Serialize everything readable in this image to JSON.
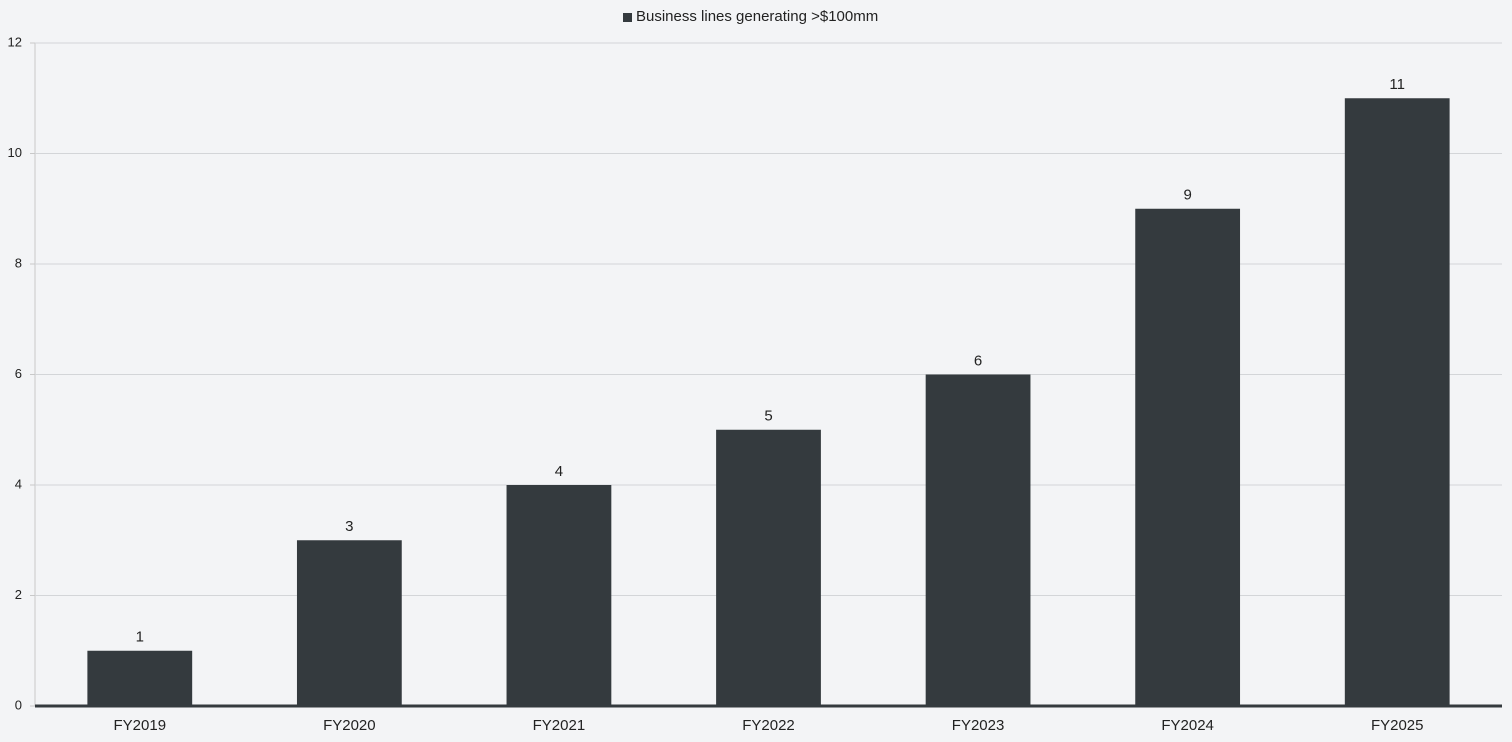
{
  "chart_data": {
    "type": "bar",
    "categories": [
      "FY2019",
      "FY2020",
      "FY2021",
      "FY2022",
      "FY2023",
      "FY2024",
      "FY2025"
    ],
    "series": [
      {
        "name": "Business lines generating >$100mm",
        "color": "#343a3e",
        "values": [
          1,
          3,
          4,
          5,
          6,
          9,
          11
        ]
      }
    ],
    "ylim": [
      0,
      12
    ],
    "yticks": [
      0,
      2,
      4,
      6,
      8,
      10,
      12
    ],
    "grid": true,
    "legend": "top",
    "data_labels": true
  }
}
